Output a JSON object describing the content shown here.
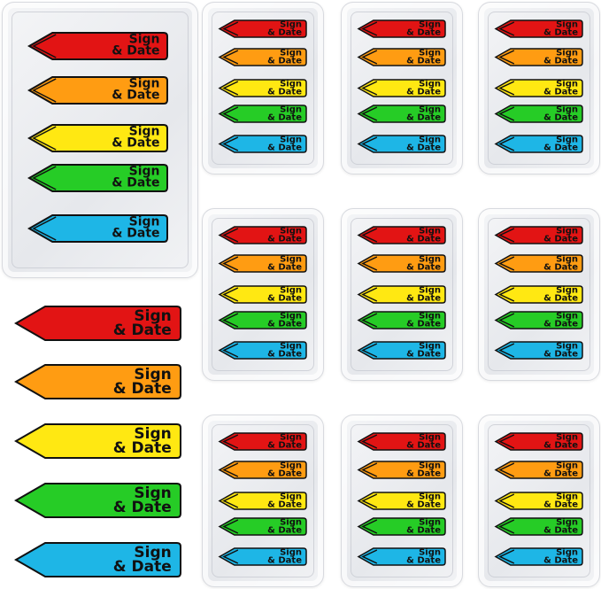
{
  "label": {
    "line1": "Sign",
    "line2": "& Date"
  },
  "colors": {
    "red": "#e21414",
    "orange": "#ff9c12",
    "yellow": "#ffe812",
    "green": "#26cc26",
    "blue": "#1eb6e6",
    "outline": "#111111"
  },
  "flag_order": [
    "red",
    "orange",
    "yellow",
    "green",
    "blue"
  ],
  "trays": {
    "large": 1,
    "small_grid": "3x3"
  },
  "loose_flags": 5
}
